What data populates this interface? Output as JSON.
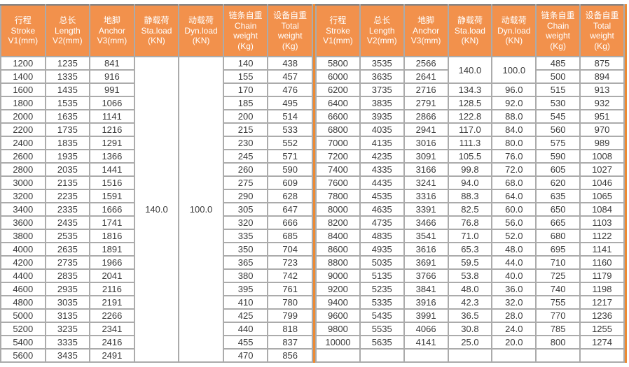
{
  "colors": {
    "header_bg": "#F2914C",
    "header_text": "#FFFFFF",
    "grid_line": "#ABABAB",
    "divider_orange": "#ED8A33",
    "top_line": "#7E7E7E",
    "cell_text": "#3A3A3A"
  },
  "columns": [
    {
      "key": "stroke",
      "lines": [
        "行程",
        "Stroke",
        "V1(mm)"
      ]
    },
    {
      "key": "length",
      "lines": [
        "总长",
        "Length",
        "V2(mm)"
      ]
    },
    {
      "key": "anchor",
      "lines": [
        "地脚",
        "Anchor",
        "V3(mm)"
      ]
    },
    {
      "key": "sta-load",
      "lines": [
        "静载荷",
        "Sta.load",
        "(KN)"
      ]
    },
    {
      "key": "dyn-load",
      "lines": [
        "动载荷",
        "Dyn.load",
        "(KN)"
      ]
    },
    {
      "key": "chain-weight",
      "lines": [
        "链条自重",
        "Chain",
        "weight",
        "(Kg)"
      ]
    },
    {
      "key": "total-weight",
      "lines": [
        "设备自重",
        "Total",
        "weight",
        "(Kg)"
      ]
    }
  ],
  "left_table": {
    "merged": {
      "start_row": 0,
      "span": 23,
      "sta_load": "140.0",
      "dyn_load": "100.0"
    },
    "rows": [
      [
        "1200",
        "1235",
        "841",
        null,
        null,
        "140",
        "438"
      ],
      [
        "1400",
        "1335",
        "916",
        null,
        null,
        "155",
        "457"
      ],
      [
        "1600",
        "1435",
        "991",
        null,
        null,
        "170",
        "476"
      ],
      [
        "1800",
        "1535",
        "1066",
        null,
        null,
        "185",
        "495"
      ],
      [
        "2000",
        "1635",
        "1141",
        null,
        null,
        "200",
        "514"
      ],
      [
        "2200",
        "1735",
        "1216",
        null,
        null,
        "215",
        "533"
      ],
      [
        "2400",
        "1835",
        "1291",
        null,
        null,
        "230",
        "552"
      ],
      [
        "2600",
        "1935",
        "1366",
        null,
        null,
        "245",
        "571"
      ],
      [
        "2800",
        "2035",
        "1441",
        null,
        null,
        "260",
        "590"
      ],
      [
        "3000",
        "2135",
        "1516",
        null,
        null,
        "275",
        "609"
      ],
      [
        "3200",
        "2235",
        "1591",
        null,
        null,
        "290",
        "628"
      ],
      [
        "3400",
        "2335",
        "1666",
        null,
        null,
        "305",
        "647"
      ],
      [
        "3600",
        "2435",
        "1741",
        null,
        null,
        "320",
        "666"
      ],
      [
        "3800",
        "2535",
        "1816",
        null,
        null,
        "335",
        "685"
      ],
      [
        "4000",
        "2635",
        "1891",
        null,
        null,
        "350",
        "704"
      ],
      [
        "4200",
        "2735",
        "1966",
        null,
        null,
        "365",
        "723"
      ],
      [
        "4400",
        "2835",
        "2041",
        null,
        null,
        "380",
        "742"
      ],
      [
        "4600",
        "2935",
        "2116",
        null,
        null,
        "395",
        "761"
      ],
      [
        "4800",
        "3035",
        "2191",
        null,
        null,
        "410",
        "780"
      ],
      [
        "5000",
        "3135",
        "2266",
        null,
        null,
        "425",
        "799"
      ],
      [
        "5200",
        "3235",
        "2341",
        null,
        null,
        "440",
        "818"
      ],
      [
        "5400",
        "3335",
        "2416",
        null,
        null,
        "455",
        "837"
      ],
      [
        "5600",
        "3435",
        "2491",
        null,
        null,
        "470",
        "856"
      ]
    ]
  },
  "right_table": {
    "merged": {
      "start_row": 0,
      "span": 2,
      "sta_load": "140.0",
      "dyn_load": "100.0"
    },
    "rows": [
      [
        "5800",
        "3535",
        "2566",
        null,
        null,
        "485",
        "875"
      ],
      [
        "6000",
        "3635",
        "2641",
        null,
        null,
        "500",
        "894"
      ],
      [
        "6200",
        "3735",
        "2716",
        "134.3",
        "96.0",
        "515",
        "913"
      ],
      [
        "6400",
        "3835",
        "2791",
        "128.5",
        "92.0",
        "530",
        "932"
      ],
      [
        "6600",
        "3935",
        "2866",
        "122.8",
        "88.0",
        "545",
        "951"
      ],
      [
        "6800",
        "4035",
        "2941",
        "117.0",
        "84.0",
        "560",
        "970"
      ],
      [
        "7000",
        "4135",
        "3016",
        "111.3",
        "80.0",
        "575",
        "989"
      ],
      [
        "7200",
        "4235",
        "3091",
        "105.5",
        "76.0",
        "590",
        "1008"
      ],
      [
        "7400",
        "4335",
        "3166",
        "99.8",
        "72.0",
        "605",
        "1027"
      ],
      [
        "7600",
        "4435",
        "3241",
        "94.0",
        "68.0",
        "620",
        "1046"
      ],
      [
        "7800",
        "4535",
        "3316",
        "88.3",
        "64.0",
        "635",
        "1065"
      ],
      [
        "8000",
        "4635",
        "3391",
        "82.5",
        "60.0",
        "650",
        "1084"
      ],
      [
        "8200",
        "4735",
        "3466",
        "76.8",
        "56.0",
        "665",
        "1103"
      ],
      [
        "8400",
        "4835",
        "3541",
        "71.0",
        "52.0",
        "680",
        "1122"
      ],
      [
        "8600",
        "4935",
        "3616",
        "65.3",
        "48.0",
        "695",
        "1141"
      ],
      [
        "8800",
        "5035",
        "3691",
        "59.5",
        "44.0",
        "710",
        "1160"
      ],
      [
        "9000",
        "5135",
        "3766",
        "53.8",
        "40.0",
        "725",
        "1179"
      ],
      [
        "9200",
        "5235",
        "3841",
        "48.0",
        "36.0",
        "740",
        "1198"
      ],
      [
        "9400",
        "5335",
        "3916",
        "42.3",
        "32.0",
        "755",
        "1217"
      ],
      [
        "9600",
        "5435",
        "3991",
        "36.5",
        "28.0",
        "770",
        "1236"
      ],
      [
        "9800",
        "5535",
        "4066",
        "30.8",
        "24.0",
        "785",
        "1255"
      ],
      [
        "10000",
        "5635",
        "4141",
        "25.0",
        "20.0",
        "800",
        "1274"
      ],
      [
        "",
        "",
        "",
        "",
        "",
        "",
        ""
      ]
    ]
  }
}
